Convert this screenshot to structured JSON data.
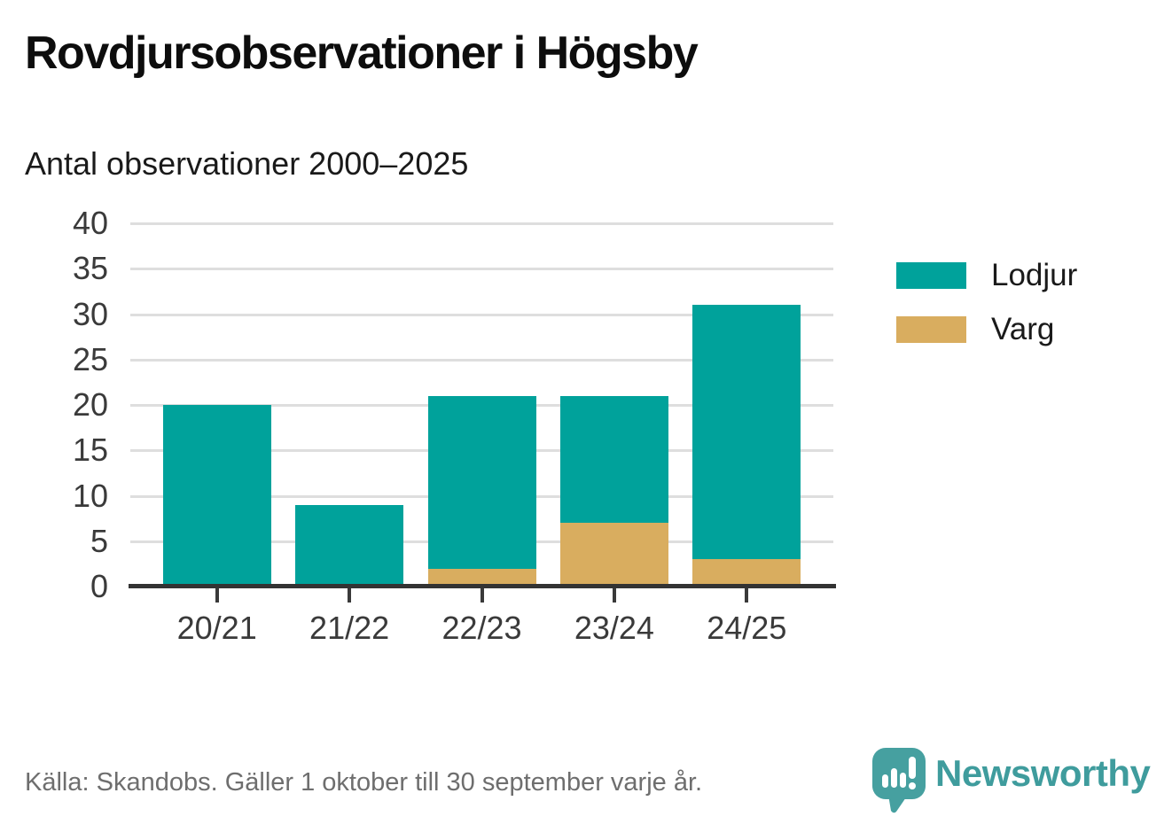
{
  "header": {
    "title": "Rovdjursobservationer i Högsby",
    "subtitle": "Antal observationer 2000–2025"
  },
  "chart_data": {
    "type": "bar",
    "stacked": true,
    "categories": [
      "20/21",
      "21/22",
      "22/23",
      "23/24",
      "24/25"
    ],
    "series": [
      {
        "name": "Lodjur",
        "color": "#00a29b",
        "values": [
          20,
          9,
          19,
          14,
          28
        ]
      },
      {
        "name": "Varg",
        "color": "#d9ad5f",
        "values": [
          0,
          0,
          2,
          7,
          3
        ]
      }
    ],
    "stack_bottom_to_top": [
      "Varg",
      "Lodjur"
    ],
    "stack_totals": [
      20,
      9,
      21,
      21,
      31
    ],
    "title": "Rovdjursobservationer i Högsby",
    "subtitle": "Antal observationer 2000–2025",
    "xlabel": "",
    "ylabel": "",
    "yticks": [
      0,
      5,
      10,
      15,
      20,
      25,
      30,
      35,
      40
    ],
    "ylim": [
      0,
      40
    ],
    "grid": true,
    "legend_position": "right"
  },
  "legend": {
    "items": [
      {
        "label": "Lodjur",
        "color": "#00a29b"
      },
      {
        "label": "Varg",
        "color": "#d9ad5f"
      }
    ]
  },
  "footer": {
    "source": "Källa: Skandobs. Gäller 1 oktober till 30 september varje år.",
    "logo_text": "Newsworthy"
  },
  "colors": {
    "lodjur": "#00a29b",
    "varg": "#d9ad5f",
    "gridline": "#dedede",
    "axis_line": "#333333",
    "tick_text": "#3a3a3a",
    "title_text": "#0d0d0d",
    "source_text": "#6e6e6e",
    "logo_teal": "#3f9c9d"
  }
}
